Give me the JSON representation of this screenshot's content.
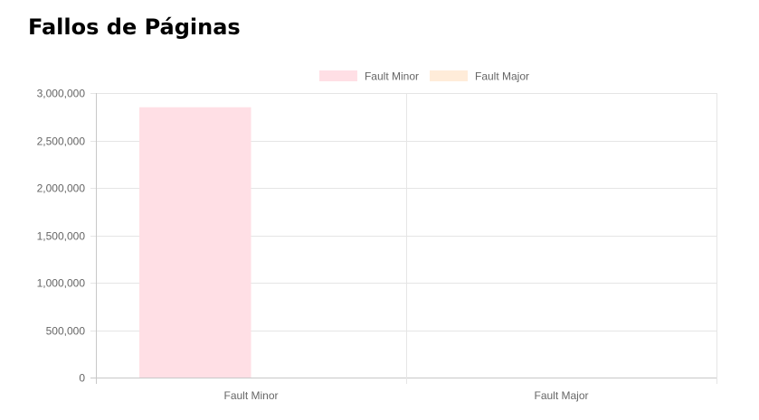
{
  "page": {
    "title": "Fallos de Páginas"
  },
  "chart_data": {
    "type": "bar",
    "categories": [
      "Fault Minor",
      "Fault Major"
    ],
    "series": [
      {
        "name": "Fault Minor",
        "values": [
          2850000,
          0
        ],
        "color": "#ffdfe5",
        "border": "#ffb1c1"
      },
      {
        "name": "Fault Major",
        "values": [
          0,
          0
        ],
        "color": "#ffecd9",
        "border": "#ffcf9f"
      }
    ],
    "ylim": [
      0,
      3000000
    ],
    "yticks": [
      0,
      500000,
      1000000,
      1500000,
      2000000,
      2500000,
      3000000
    ],
    "ytick_labels": [
      "0",
      "500,000",
      "1,000,000",
      "1,500,000",
      "2,000,000",
      "2,500,000",
      "3,000,000"
    ],
    "grid": true,
    "legend_position": "top",
    "xlabel": "",
    "ylabel": ""
  }
}
